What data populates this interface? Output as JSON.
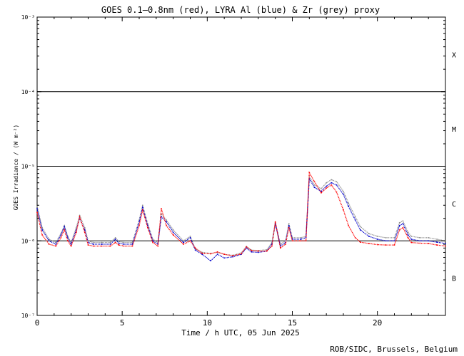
{
  "chart_data": {
    "type": "scatter",
    "title": "GOES 0.1—0.8nm (red), LYRA Al (blue) & Zr (grey) proxy",
    "xlabel": "Time / h UTC, 05 Jun 2025",
    "ylabel": "GOES Irradiance / (W m⁻²)",
    "xlim": [
      0,
      24
    ],
    "ylim": [
      1e-07,
      0.001
    ],
    "yscale": "log",
    "x_ticks": [
      0,
      5,
      10,
      15,
      20
    ],
    "y_ticks": [
      {
        "value": 1e-07,
        "label": "10⁻⁷"
      },
      {
        "value": 1e-06,
        "label": "10⁻⁶"
      },
      {
        "value": 1e-05,
        "label": "10⁻⁵"
      },
      {
        "value": 0.0001,
        "label": "10⁻⁴"
      },
      {
        "value": 0.001,
        "label": "10⁻³"
      }
    ],
    "class_lines": [
      1e-06,
      1e-05,
      0.0001
    ],
    "flare_classes": [
      {
        "label": "X",
        "value": 0.000316
      },
      {
        "label": "M",
        "value": 3.16e-05
      },
      {
        "label": "C",
        "value": 3.16e-06
      },
      {
        "label": "B",
        "value": 3.16e-07
      }
    ],
    "series": [
      {
        "name": "GOES 0.1-0.8nm",
        "color": "#ff0000",
        "x": [
          0,
          0.3,
          0.7,
          1.1,
          1.4,
          1.6,
          1.8,
          2.0,
          2.3,
          2.5,
          2.8,
          3.0,
          3.3,
          3.8,
          4.3,
          4.6,
          4.8,
          5.1,
          5.6,
          6.0,
          6.2,
          6.5,
          6.8,
          7.1,
          7.3,
          7.6,
          8.0,
          8.6,
          9.0,
          9.3,
          9.7,
          10.2,
          10.6,
          11.0,
          11.5,
          12.0,
          12.3,
          12.6,
          13.0,
          13.5,
          13.8,
          14.0,
          14.3,
          14.6,
          14.8,
          15.0,
          15.5,
          15.8,
          16.0,
          16.3,
          16.7,
          17.0,
          17.3,
          17.6,
          18.0,
          18.3,
          18.7,
          19.0,
          19.5,
          20.0,
          20.5,
          21.0,
          21.3,
          21.5,
          21.8,
          22.0,
          22.5,
          23.0,
          23.5,
          24.0
        ],
        "y": [
          2.4e-06,
          1.2e-06,
          9e-07,
          8.5e-07,
          1.1e-06,
          1.4e-06,
          1e-06,
          8.5e-07,
          1.3e-06,
          2.1e-06,
          1.3e-06,
          8.8e-07,
          8.5e-07,
          8.5e-07,
          8.5e-07,
          9.5e-07,
          8.8e-07,
          8.5e-07,
          8.5e-07,
          1.6e-06,
          2.6e-06,
          1.5e-06,
          9.5e-07,
          8.5e-07,
          2.7e-06,
          1.6e-06,
          1.2e-06,
          9e-07,
          1e-06,
          8e-07,
          6.8e-07,
          6.7e-07,
          7.1e-07,
          6.6e-07,
          6.3e-07,
          6.7e-07,
          8.3e-07,
          7.4e-07,
          7.3e-07,
          7.3e-07,
          8.5e-07,
          1.8e-06,
          8e-07,
          9e-07,
          1.5e-06,
          1e-06,
          1e-06,
          1e-06,
          8.2e-06,
          6.2e-06,
          4.4e-06,
          5.1e-06,
          5.6e-06,
          4.5e-06,
          2.6e-06,
          1.6e-06,
          1.1e-06,
          9.6e-07,
          9.2e-07,
          8.9e-07,
          8.8e-07,
          8.8e-07,
          1.4e-06,
          1.5e-06,
          1.1e-06,
          9.5e-07,
          9.3e-07,
          9.2e-07,
          8.8e-07,
          8.5e-07
        ]
      },
      {
        "name": "LYRA Al proxy",
        "color": "#0000cc",
        "x": [
          0,
          0.3,
          0.7,
          1.1,
          1.4,
          1.6,
          1.8,
          2.0,
          2.3,
          2.5,
          2.8,
          3.0,
          3.3,
          3.8,
          4.3,
          4.6,
          4.8,
          5.1,
          5.6,
          6.0,
          6.2,
          6.5,
          6.8,
          7.1,
          7.3,
          7.6,
          8.0,
          8.6,
          9.0,
          9.3,
          9.7,
          10.2,
          10.6,
          11.0,
          11.5,
          12.0,
          12.3,
          12.6,
          13.0,
          13.5,
          13.8,
          14.0,
          14.3,
          14.6,
          14.8,
          15.0,
          15.5,
          15.8,
          16.0,
          16.3,
          16.7,
          17.0,
          17.3,
          17.6,
          18.0,
          18.3,
          18.7,
          19.0,
          19.5,
          20.0,
          20.5,
          21.0,
          21.3,
          21.5,
          21.8,
          22.0,
          22.5,
          23.0,
          23.5,
          24.0
        ],
        "y": [
          2.7e-06,
          1.4e-06,
          1e-06,
          9e-07,
          1.2e-06,
          1.55e-06,
          1.1e-06,
          9e-07,
          1.4e-06,
          2e-06,
          1.4e-06,
          9.5e-07,
          9e-07,
          9e-07,
          9e-07,
          1.05e-06,
          9.3e-07,
          9e-07,
          9e-07,
          1.8e-06,
          2.8e-06,
          1.6e-06,
          1e-06,
          9e-07,
          2.1e-06,
          1.8e-06,
          1.3e-06,
          9.5e-07,
          1.1e-06,
          7.5e-07,
          6.6e-07,
          5.4e-07,
          6.6e-07,
          5.9e-07,
          6.1e-07,
          6.6e-07,
          8e-07,
          7.1e-07,
          7e-07,
          7.3e-07,
          9e-07,
          1.7e-06,
          8.5e-07,
          9.5e-07,
          1.6e-06,
          1.05e-06,
          1.05e-06,
          1.1e-06,
          6.8e-06,
          5.2e-06,
          4.6e-06,
          5.4e-06,
          6e-06,
          5.6e-06,
          4.2e-06,
          2.9e-06,
          1.9e-06,
          1.4e-06,
          1.15e-06,
          1.05e-06,
          1e-06,
          1e-06,
          1.6e-06,
          1.7e-06,
          1.2e-06,
          1.05e-06,
          1e-06,
          1e-06,
          9.6e-07,
          9.2e-07
        ]
      },
      {
        "name": "LYRA Zr proxy",
        "color": "#909090",
        "x": [
          0,
          0.3,
          0.7,
          1.1,
          1.4,
          1.6,
          1.8,
          2.0,
          2.3,
          2.5,
          2.8,
          3.0,
          3.3,
          3.8,
          4.3,
          4.6,
          4.8,
          5.1,
          5.6,
          6.0,
          6.2,
          6.5,
          6.8,
          7.1,
          7.3,
          7.6,
          8.0,
          8.6,
          9.0,
          9.3,
          9.7,
          10.2,
          10.6,
          11.0,
          11.5,
          12.0,
          12.3,
          12.6,
          13.0,
          13.5,
          13.8,
          14.0,
          14.3,
          14.6,
          14.8,
          15.0,
          15.5,
          15.8,
          16.0,
          16.3,
          16.7,
          17.0,
          17.3,
          17.6,
          18.0,
          18.3,
          18.7,
          19.0,
          19.5,
          20.0,
          20.5,
          21.0,
          21.3,
          21.5,
          21.8,
          22.0,
          22.5,
          23.0,
          23.5,
          24.0
        ],
        "y": [
          2.9e-06,
          1.5e-06,
          1.05e-06,
          9.5e-07,
          1.25e-06,
          1.6e-06,
          1.15e-06,
          9.5e-07,
          1.5e-06,
          2.2e-06,
          1.5e-06,
          1e-06,
          9.5e-07,
          9.5e-07,
          9.5e-07,
          1.1e-06,
          9.8e-07,
          9.5e-07,
          9.5e-07,
          1.9e-06,
          3e-06,
          1.7e-06,
          1.05e-06,
          9.5e-07,
          2.3e-06,
          1.9e-06,
          1.4e-06,
          1e-06,
          1.15e-06,
          7.8e-07,
          7e-07,
          6.8e-07,
          7e-07,
          6.6e-07,
          6.4e-07,
          6.9e-07,
          8.4e-07,
          7.5e-07,
          7.4e-07,
          7.6e-07,
          9.5e-07,
          1.75e-06,
          9e-07,
          1e-06,
          1.7e-06,
          1.1e-06,
          1.1e-06,
          1.15e-06,
          7.2e-06,
          5.6e-06,
          5e-06,
          6e-06,
          6.6e-06,
          6.2e-06,
          4.6e-06,
          3.2e-06,
          2.1e-06,
          1.55e-06,
          1.25e-06,
          1.15e-06,
          1.1e-06,
          1.1e-06,
          1.75e-06,
          1.85e-06,
          1.3e-06,
          1.15e-06,
          1.1e-06,
          1.1e-06,
          1.05e-06,
          1e-06
        ]
      }
    ],
    "credit": "ROB/SIDC, Brussels, Belgium"
  }
}
